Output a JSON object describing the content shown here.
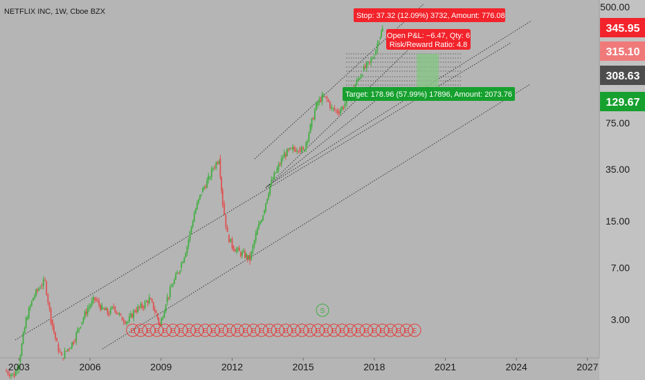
{
  "header": {
    "symbol_title": "NETFLIX INC, 1W, Cboe BZX"
  },
  "chart_data": {
    "type": "line",
    "title": "NETFLIX INC, 1W, Cboe BZX",
    "y_scale": "log",
    "ylim": [
      1.6,
      560
    ],
    "xlim": [
      2002.2,
      2027.5
    ],
    "y_ticks": [
      "500.00",
      "75.00",
      "35.00",
      "15.00",
      "7.00",
      "3.00"
    ],
    "x_ticks": [
      "2003",
      "2006",
      "2009",
      "2012",
      "2015",
      "2018",
      "2021",
      "2024",
      "2027"
    ],
    "series": [
      {
        "x": [
          2002.4,
          2002.8,
          2003.0,
          2003.3,
          2003.6,
          2003.9,
          2004.1,
          2004.35,
          2004.6,
          2004.8,
          2005.0,
          2005.3,
          2005.6,
          2005.9,
          2006.2,
          2006.5,
          2006.8,
          2007.0,
          2007.3,
          2007.6,
          2007.9,
          2008.2,
          2008.5,
          2008.8,
          2008.95,
          2009.2,
          2009.5,
          2009.8,
          2010.1,
          2010.4,
          2010.7,
          2011.0,
          2011.2,
          2011.45,
          2011.6,
          2011.8,
          2012.0,
          2012.3,
          2012.6,
          2012.75,
          2013.0,
          2013.3,
          2013.6,
          2013.9,
          2014.2,
          2014.5,
          2014.8,
          2015.0,
          2015.3,
          2015.55,
          2015.8,
          2016.0,
          2016.2,
          2016.45,
          2016.7,
          2016.9,
          2017.2,
          2017.5,
          2017.8,
          2018.0,
          2018.2,
          2018.35
        ],
        "values": [
          1.3,
          1.2,
          1.5,
          3.0,
          4.3,
          5.2,
          5.6,
          3.0,
          2.0,
          1.6,
          1.8,
          2.1,
          2.8,
          3.6,
          4.2,
          3.6,
          3.3,
          3.7,
          3.1,
          2.9,
          3.5,
          3.7,
          4.2,
          3.3,
          2.7,
          4.0,
          5.4,
          7.0,
          10,
          17,
          24,
          30,
          36,
          42,
          20,
          12,
          10,
          9,
          8.5,
          8.0,
          12,
          17,
          27,
          35,
          45,
          48,
          50,
          47,
          70,
          100,
          115,
          110,
          95,
          90,
          98,
          115,
          140,
          175,
          200,
          230,
          300,
          345
        ]
      }
    ],
    "last_price_label": "308.63",
    "price_labels": [
      {
        "value": 345.95,
        "text": "345.95",
        "color": "#f2232b"
      },
      {
        "value": 315.1,
        "text": "315.10",
        "color": "#f07a7a"
      },
      {
        "value": 308.63,
        "text": "308.63",
        "color": "#4d4d4d"
      },
      {
        "value": 129.67,
        "text": "129.67",
        "color": "#16a02e"
      }
    ],
    "annotations": {
      "stop": "Stop: 37.32 (12.09%) 3732, Amount: 776.08",
      "target": "Target: 178.96 (57.99%) 17896, Amount: 2073.76",
      "open_pl": "Open P&L: −6.47, Qty: 6",
      "risk_reward": "Risk/Reward Ratio: 4.8"
    },
    "event_marker_label": "E",
    "split_marker_label": "S",
    "colors": {
      "background": "#b5b5b5",
      "up_candle": "#3fae3f",
      "down_candle": "#e05050",
      "stop_box": "#f2232b",
      "target_box": "#16a02e",
      "profit_zone": "#84c784",
      "axis_bg": "#c2c2c2"
    }
  }
}
